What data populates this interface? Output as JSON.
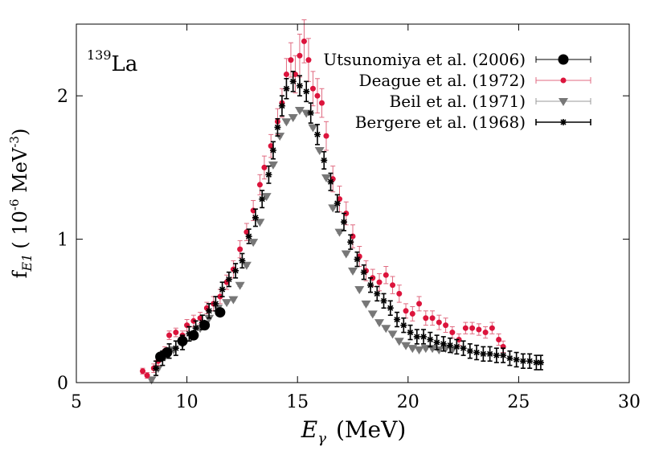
{
  "chart_data": {
    "type": "scatter",
    "title": "",
    "nucleus_label": {
      "mass": "139",
      "element": "La"
    },
    "xlabel": {
      "symbol": "E",
      "subscript": "γ",
      "units": "(MeV)"
    },
    "ylabel": {
      "symbol": "f",
      "subscript": "E1",
      "units": "( 10",
      "exponent1": "-6",
      "units2": " MeV",
      "exponent2": "-3",
      "close": ")"
    },
    "xlim": [
      5,
      30
    ],
    "ylim": [
      0,
      2.5
    ],
    "xticks": [
      5,
      10,
      15,
      20,
      25,
      30
    ],
    "yticks": [
      0,
      1,
      2
    ],
    "grid": false,
    "legend_position": "top-right",
    "series": [
      {
        "name": "Utsunomiya et al. (2006)",
        "marker": "circle-large",
        "color": "#000000",
        "points": [
          [
            8.8,
            0.18,
            0.0
          ],
          [
            9.1,
            0.21,
            0.0
          ],
          [
            9.8,
            0.29,
            0.0
          ],
          [
            10.3,
            0.33,
            0.0
          ],
          [
            10.8,
            0.4,
            0.0
          ],
          [
            11.5,
            0.49,
            0.0
          ]
        ]
      },
      {
        "name": "Deague et al. (1972)",
        "marker": "circle-small",
        "color": "#dc143c",
        "points": [
          [
            8.0,
            0.08,
            0.02
          ],
          [
            8.2,
            0.05,
            0.02
          ],
          [
            8.5,
            0.1,
            0.03
          ],
          [
            8.7,
            0.15,
            0.03
          ],
          [
            9.0,
            0.22,
            0.03
          ],
          [
            9.2,
            0.33,
            0.03
          ],
          [
            9.5,
            0.35,
            0.03
          ],
          [
            9.8,
            0.33,
            0.03
          ],
          [
            10.0,
            0.4,
            0.04
          ],
          [
            10.3,
            0.43,
            0.04
          ],
          [
            10.6,
            0.45,
            0.04
          ],
          [
            10.9,
            0.52,
            0.04
          ],
          [
            11.2,
            0.55,
            0.05
          ],
          [
            11.5,
            0.6,
            0.05
          ],
          [
            11.8,
            0.7,
            0.05
          ],
          [
            12.1,
            0.79,
            0.06
          ],
          [
            12.4,
            0.93,
            0.06
          ],
          [
            12.7,
            1.05,
            0.06
          ],
          [
            13.0,
            1.2,
            0.07
          ],
          [
            13.3,
            1.38,
            0.07
          ],
          [
            13.5,
            1.5,
            0.08
          ],
          [
            13.8,
            1.65,
            0.08
          ],
          [
            14.1,
            1.82,
            0.09
          ],
          [
            14.3,
            1.95,
            0.1
          ],
          [
            14.5,
            2.15,
            0.11
          ],
          [
            14.7,
            2.25,
            0.12
          ],
          [
            14.9,
            2.15,
            0.13
          ],
          [
            15.1,
            2.28,
            0.15
          ],
          [
            15.3,
            2.38,
            0.15
          ],
          [
            15.5,
            2.25,
            0.15
          ],
          [
            15.7,
            2.05,
            0.12
          ],
          [
            15.9,
            2.0,
            0.12
          ],
          [
            16.1,
            1.95,
            0.1
          ],
          [
            16.3,
            1.72,
            0.1
          ],
          [
            16.6,
            1.42,
            0.09
          ],
          [
            16.9,
            1.28,
            0.09
          ],
          [
            17.2,
            1.18,
            0.08
          ],
          [
            17.5,
            1.02,
            0.08
          ],
          [
            17.8,
            0.88,
            0.07
          ],
          [
            18.1,
            0.78,
            0.07
          ],
          [
            18.4,
            0.73,
            0.06
          ],
          [
            18.7,
            0.7,
            0.06
          ],
          [
            19.0,
            0.75,
            0.06
          ],
          [
            19.3,
            0.68,
            0.06
          ],
          [
            19.6,
            0.62,
            0.06
          ],
          [
            19.9,
            0.5,
            0.05
          ],
          [
            20.2,
            0.48,
            0.05
          ],
          [
            20.5,
            0.55,
            0.05
          ],
          [
            20.8,
            0.45,
            0.05
          ],
          [
            21.1,
            0.45,
            0.05
          ],
          [
            21.4,
            0.42,
            0.05
          ],
          [
            21.7,
            0.4,
            0.05
          ],
          [
            22.0,
            0.35,
            0.04
          ],
          [
            22.3,
            0.3,
            0.04
          ],
          [
            22.6,
            0.38,
            0.04
          ],
          [
            22.9,
            0.38,
            0.04
          ],
          [
            23.2,
            0.37,
            0.04
          ],
          [
            23.5,
            0.35,
            0.04
          ],
          [
            23.8,
            0.38,
            0.04
          ],
          [
            24.1,
            0.3,
            0.04
          ],
          [
            24.3,
            0.25,
            0.04
          ]
        ]
      },
      {
        "name": "Beil et al. (1971)",
        "marker": "triangle-down",
        "color": "#777777",
        "points": [
          [
            8.4,
            0.02,
            0.01
          ],
          [
            8.7,
            0.1,
            0.01
          ],
          [
            9.0,
            0.18,
            0.01
          ],
          [
            9.4,
            0.23,
            0.01
          ],
          [
            9.8,
            0.27,
            0.01
          ],
          [
            10.2,
            0.32,
            0.01
          ],
          [
            10.6,
            0.38,
            0.01
          ],
          [
            11.0,
            0.45,
            0.01
          ],
          [
            11.4,
            0.52,
            0.01
          ],
          [
            11.8,
            0.56,
            0.01
          ],
          [
            12.1,
            0.58,
            0.01
          ],
          [
            12.4,
            0.68,
            0.01
          ],
          [
            12.7,
            0.82,
            0.01
          ],
          [
            13.0,
            0.98,
            0.01
          ],
          [
            13.3,
            1.12,
            0.01
          ],
          [
            13.6,
            1.3,
            0.01
          ],
          [
            13.9,
            1.52,
            0.01
          ],
          [
            14.2,
            1.72,
            0.01
          ],
          [
            14.5,
            1.82,
            0.01
          ],
          [
            14.8,
            1.85,
            0.01
          ],
          [
            15.1,
            1.9,
            0.01
          ],
          [
            15.4,
            1.88,
            0.01
          ],
          [
            15.7,
            1.78,
            0.01
          ],
          [
            16.0,
            1.62,
            0.01
          ],
          [
            16.3,
            1.43,
            0.01
          ],
          [
            16.6,
            1.22,
            0.01
          ],
          [
            16.9,
            1.05,
            0.01
          ],
          [
            17.2,
            0.9,
            0.01
          ],
          [
            17.5,
            0.78,
            0.01
          ],
          [
            17.8,
            0.65,
            0.01
          ],
          [
            18.1,
            0.55,
            0.01
          ],
          [
            18.4,
            0.48,
            0.01
          ],
          [
            18.7,
            0.42,
            0.01
          ],
          [
            19.0,
            0.38,
            0.01
          ],
          [
            19.3,
            0.34,
            0.01
          ],
          [
            19.6,
            0.29,
            0.01
          ],
          [
            19.9,
            0.26,
            0.01
          ],
          [
            20.2,
            0.24,
            0.01
          ],
          [
            20.5,
            0.23,
            0.01
          ],
          [
            20.8,
            0.24,
            0.01
          ],
          [
            21.1,
            0.24,
            0.01
          ],
          [
            21.4,
            0.23,
            0.01
          ],
          [
            21.7,
            0.24,
            0.01
          ],
          [
            22.0,
            0.23,
            0.01
          ]
        ]
      },
      {
        "name": "Bergere et al. (1968)",
        "marker": "star",
        "color": "#000000",
        "points": [
          [
            8.6,
            0.1,
            0.05
          ],
          [
            8.9,
            0.17,
            0.05
          ],
          [
            9.2,
            0.22,
            0.05
          ],
          [
            9.5,
            0.24,
            0.05
          ],
          [
            9.8,
            0.28,
            0.05
          ],
          [
            10.1,
            0.34,
            0.05
          ],
          [
            10.4,
            0.38,
            0.05
          ],
          [
            10.7,
            0.42,
            0.05
          ],
          [
            11.0,
            0.5,
            0.05
          ],
          [
            11.3,
            0.55,
            0.05
          ],
          [
            11.6,
            0.65,
            0.05
          ],
          [
            11.9,
            0.72,
            0.05
          ],
          [
            12.2,
            0.78,
            0.05
          ],
          [
            12.5,
            0.85,
            0.05
          ],
          [
            12.8,
            1.02,
            0.05
          ],
          [
            13.1,
            1.15,
            0.06
          ],
          [
            13.4,
            1.28,
            0.06
          ],
          [
            13.7,
            1.45,
            0.06
          ],
          [
            13.9,
            1.62,
            0.06
          ],
          [
            14.1,
            1.78,
            0.06
          ],
          [
            14.3,
            1.93,
            0.07
          ],
          [
            14.5,
            2.05,
            0.07
          ],
          [
            14.8,
            2.1,
            0.07
          ],
          [
            15.1,
            2.07,
            0.07
          ],
          [
            15.4,
            2.03,
            0.07
          ],
          [
            15.6,
            1.88,
            0.07
          ],
          [
            15.9,
            1.73,
            0.07
          ],
          [
            16.2,
            1.55,
            0.06
          ],
          [
            16.5,
            1.4,
            0.06
          ],
          [
            16.8,
            1.25,
            0.06
          ],
          [
            17.1,
            1.12,
            0.06
          ],
          [
            17.4,
            0.98,
            0.05
          ],
          [
            17.7,
            0.86,
            0.05
          ],
          [
            18.0,
            0.77,
            0.05
          ],
          [
            18.3,
            0.68,
            0.05
          ],
          [
            18.6,
            0.62,
            0.05
          ],
          [
            18.9,
            0.57,
            0.05
          ],
          [
            19.2,
            0.52,
            0.05
          ],
          [
            19.5,
            0.44,
            0.05
          ],
          [
            19.8,
            0.4,
            0.05
          ],
          [
            20.1,
            0.35,
            0.05
          ],
          [
            20.4,
            0.32,
            0.05
          ],
          [
            20.7,
            0.32,
            0.05
          ],
          [
            21.0,
            0.3,
            0.05
          ],
          [
            21.3,
            0.28,
            0.05
          ],
          [
            21.6,
            0.27,
            0.05
          ],
          [
            21.9,
            0.26,
            0.05
          ],
          [
            22.2,
            0.25,
            0.05
          ],
          [
            22.5,
            0.24,
            0.05
          ],
          [
            22.8,
            0.22,
            0.05
          ],
          [
            23.1,
            0.21,
            0.05
          ],
          [
            23.4,
            0.2,
            0.05
          ],
          [
            23.7,
            0.2,
            0.05
          ],
          [
            24.0,
            0.19,
            0.05
          ],
          [
            24.3,
            0.19,
            0.05
          ],
          [
            24.6,
            0.17,
            0.05
          ],
          [
            24.9,
            0.16,
            0.05
          ],
          [
            25.2,
            0.15,
            0.05
          ],
          [
            25.5,
            0.15,
            0.05
          ],
          [
            25.8,
            0.14,
            0.05
          ],
          [
            26.0,
            0.14,
            0.05
          ]
        ]
      }
    ]
  }
}
